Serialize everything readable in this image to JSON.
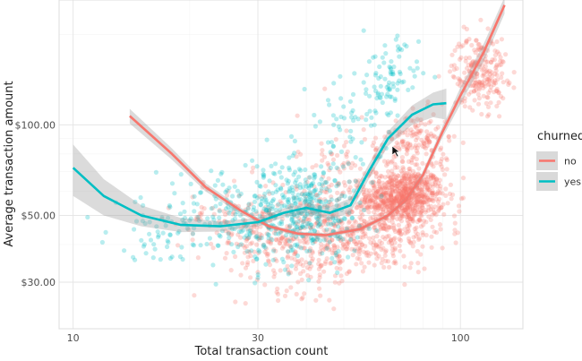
{
  "chart_data": {
    "type": "scatter",
    "xlabel": "Total transaction count",
    "ylabel": "Average transaction amount",
    "x_scale": "log10",
    "y_scale": "log10",
    "xlim": [
      9.2,
      145
    ],
    "ylim": [
      21,
      260
    ],
    "x_ticks": [
      10,
      30,
      100
    ],
    "x_tick_labels": [
      "10",
      "30",
      "100"
    ],
    "y_ticks": [
      30,
      50,
      100
    ],
    "y_tick_labels": [
      "$30.00",
      "$50.00",
      "$100.00"
    ],
    "grid": true,
    "legend": {
      "title": "churned",
      "position": "right"
    },
    "series": [
      {
        "name": "no",
        "color": "#F8766D",
        "clusters": [
          {
            "cx": 72,
            "cy": 58,
            "sx": 0.05,
            "sy": 0.045,
            "n": 700
          },
          {
            "cx": 58,
            "cy": 45,
            "sx": 0.1,
            "sy": 0.07,
            "n": 380
          },
          {
            "cx": 40,
            "cy": 40,
            "sx": 0.09,
            "sy": 0.08,
            "n": 260
          },
          {
            "cx": 28,
            "cy": 48,
            "sx": 0.09,
            "sy": 0.07,
            "n": 140
          },
          {
            "cx": 78,
            "cy": 88,
            "sx": 0.04,
            "sy": 0.05,
            "n": 130
          },
          {
            "cx": 112,
            "cy": 150,
            "sx": 0.035,
            "sy": 0.06,
            "n": 220
          },
          {
            "cx": 55,
            "cy": 70,
            "sx": 0.08,
            "sy": 0.1,
            "n": 120
          }
        ],
        "smooth": {
          "x": [
            14,
            18,
            22,
            27,
            32,
            38,
            45,
            55,
            65,
            72,
            80,
            90,
            100,
            115,
            130
          ],
          "y": [
            107,
            80,
            62,
            52,
            46,
            43.5,
            43,
            45,
            50,
            56,
            68,
            95,
            125,
            175,
            250
          ],
          "band": [
            6,
            3.5,
            2,
            1.2,
            0.8,
            0.7,
            0.7,
            0.7,
            0.8,
            1,
            2,
            4,
            8,
            12,
            16
          ]
        }
      },
      {
        "name": "yes",
        "color": "#00BFC4",
        "clusters": [
          {
            "cx": 40,
            "cy": 52,
            "sx": 0.07,
            "sy": 0.08,
            "n": 320
          },
          {
            "cx": 27,
            "cy": 50,
            "sx": 0.1,
            "sy": 0.09,
            "n": 180
          },
          {
            "cx": 65,
            "cy": 140,
            "sx": 0.04,
            "sy": 0.07,
            "n": 90
          },
          {
            "cx": 50,
            "cy": 95,
            "sx": 0.05,
            "sy": 0.08,
            "n": 50
          },
          {
            "cx": 17,
            "cy": 45,
            "sx": 0.07,
            "sy": 0.05,
            "n": 50
          }
        ],
        "smooth": {
          "x": [
            10,
            12,
            15,
            19,
            24,
            30,
            35,
            40,
            46,
            52,
            58,
            65,
            75,
            85,
            92
          ],
          "y": [
            72,
            58,
            50,
            46.5,
            46,
            47.5,
            51,
            53,
            51,
            54,
            70,
            90,
            108,
            117,
            118
          ],
          "band": [
            14,
            8,
            4,
            2.5,
            1.8,
            1.6,
            1.8,
            2,
            2.5,
            3,
            4,
            5,
            8,
            11,
            14
          ]
        }
      }
    ]
  }
}
